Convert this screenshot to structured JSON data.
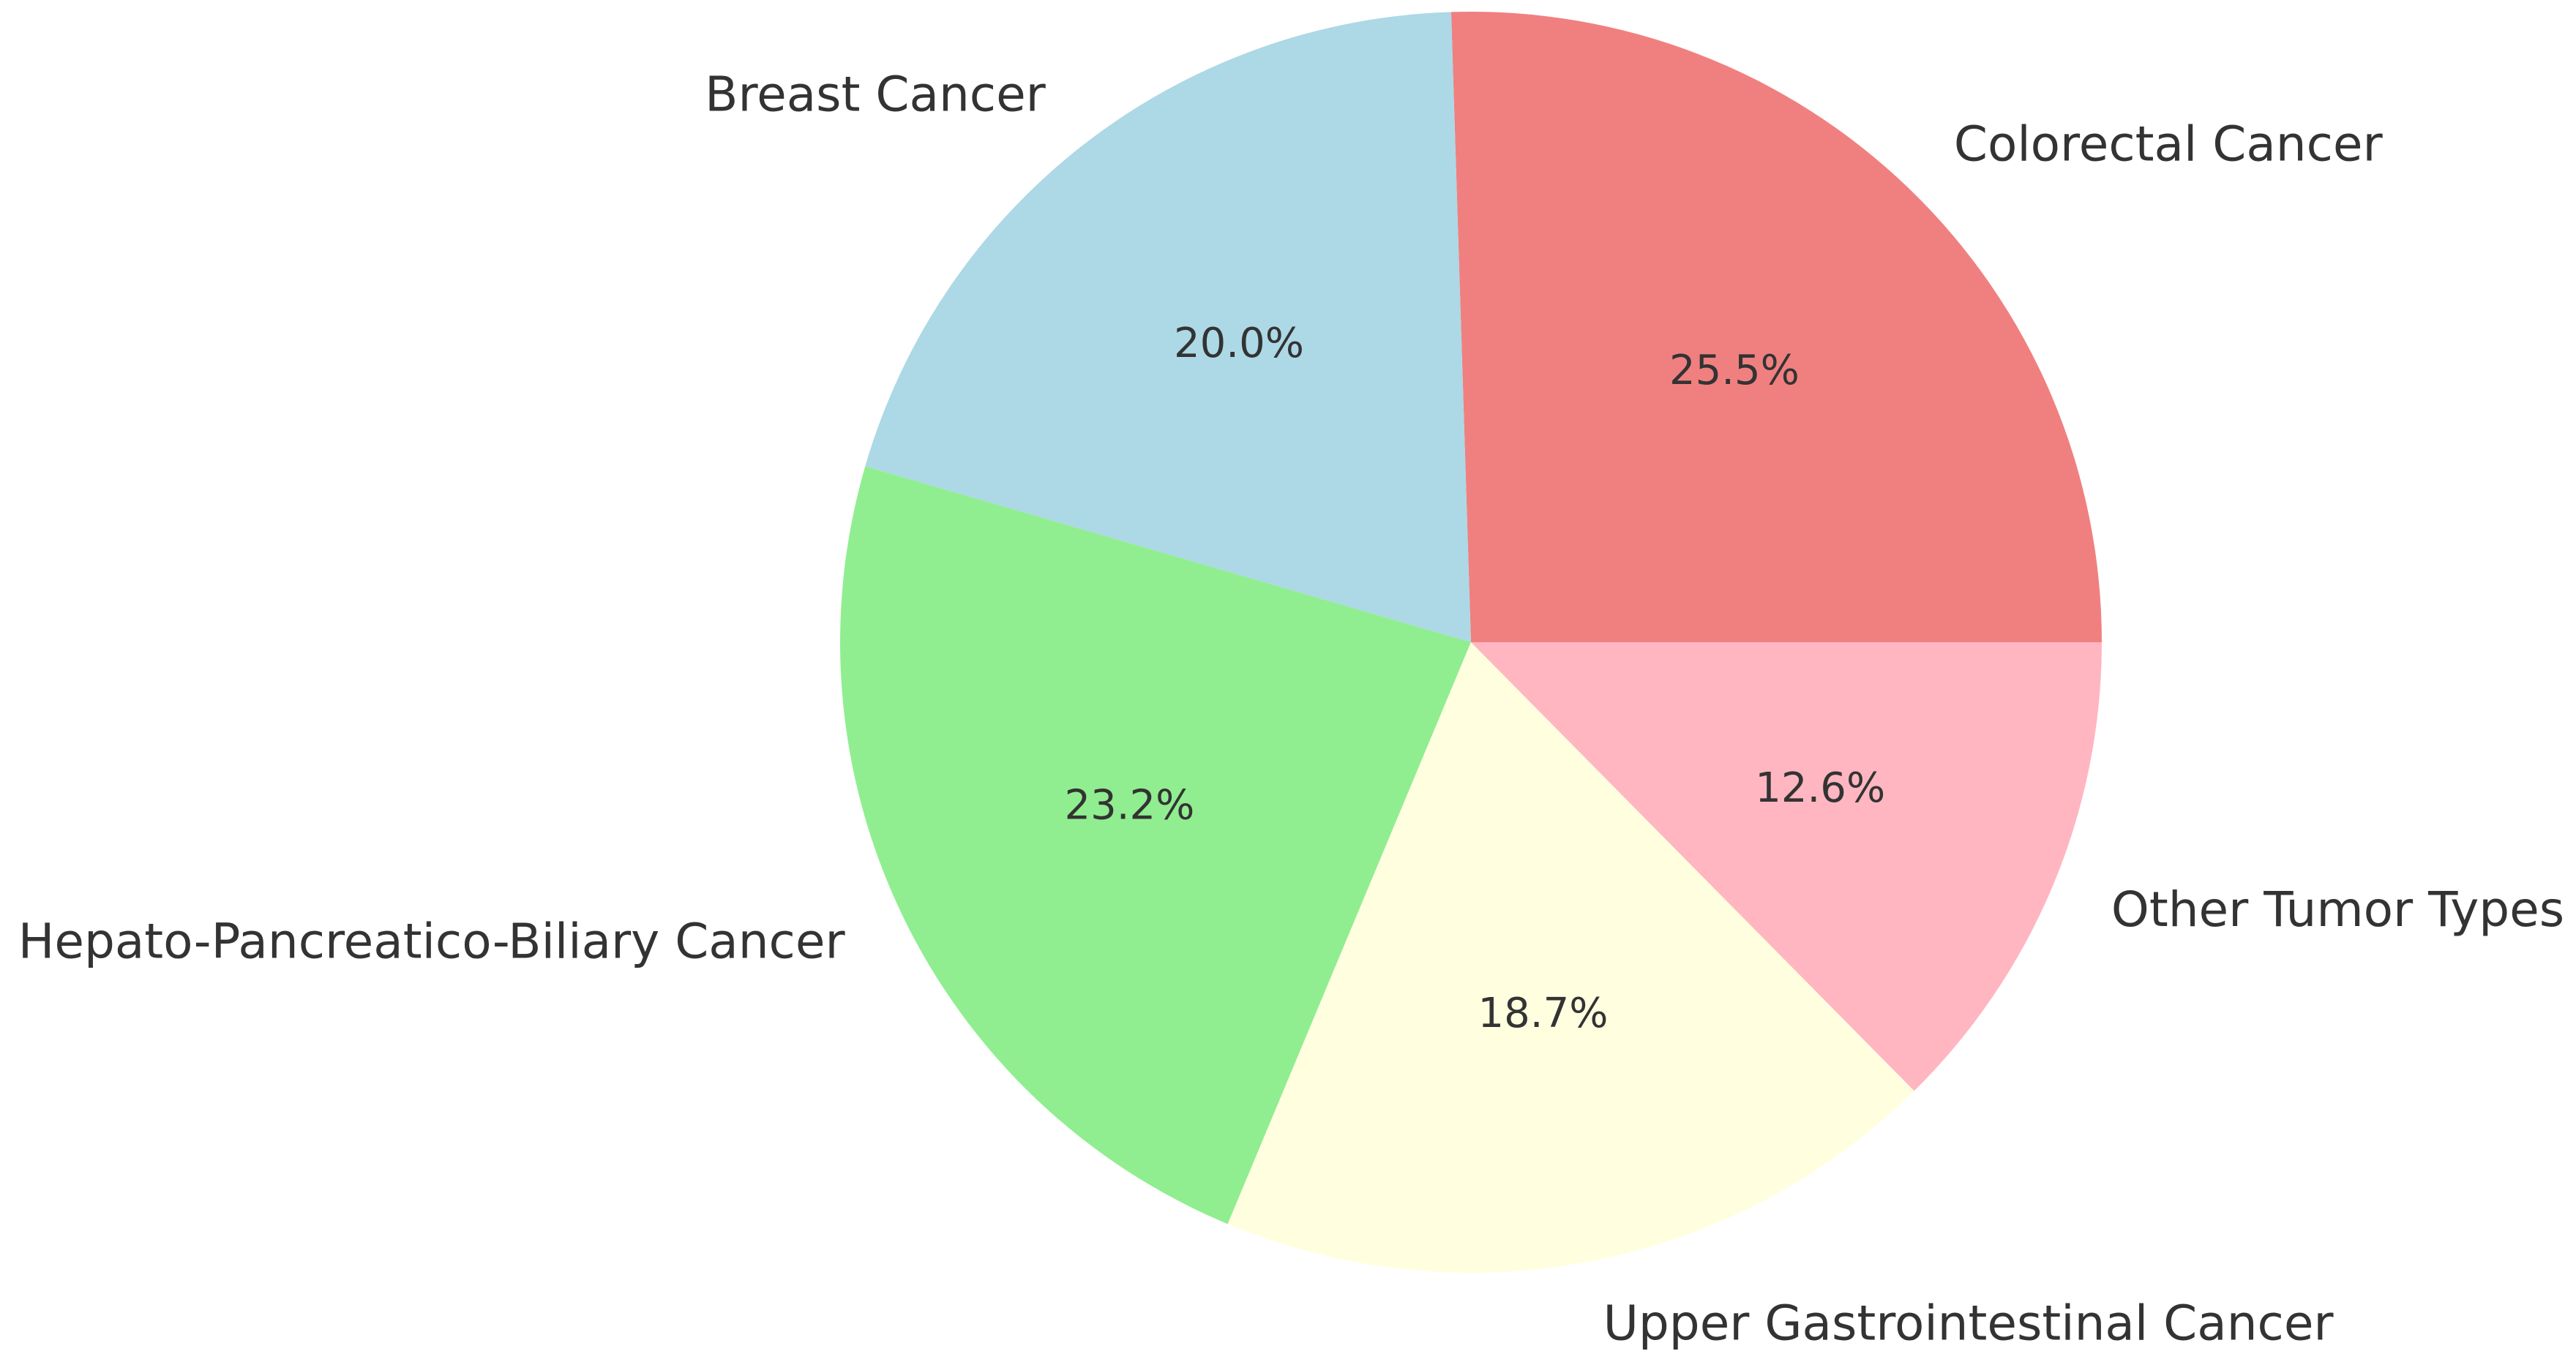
{
  "chart_data": {
    "type": "pie",
    "title": "",
    "start_angle_deg": 0,
    "direction": "counterclockwise",
    "slices": [
      {
        "label": "Colorectal Cancer",
        "value": 25.5,
        "pct_label": "25.5%",
        "color": "#F08080"
      },
      {
        "label": "Breast Cancer",
        "value": 20.0,
        "pct_label": "20.0%",
        "color": "#ADD8E6"
      },
      {
        "label": "Hepato-Pancreatico-Biliary Cancer",
        "value": 23.2,
        "pct_label": "23.2%",
        "color": "#90EE90"
      },
      {
        "label": "Upper Gastrointestinal Cancer",
        "value": 18.7,
        "pct_label": "18.7%",
        "color": "#FFFFE0"
      },
      {
        "label": "Other Tumor Types",
        "value": 12.6,
        "pct_label": "12.6%",
        "color": "#FFB6C1"
      }
    ]
  }
}
